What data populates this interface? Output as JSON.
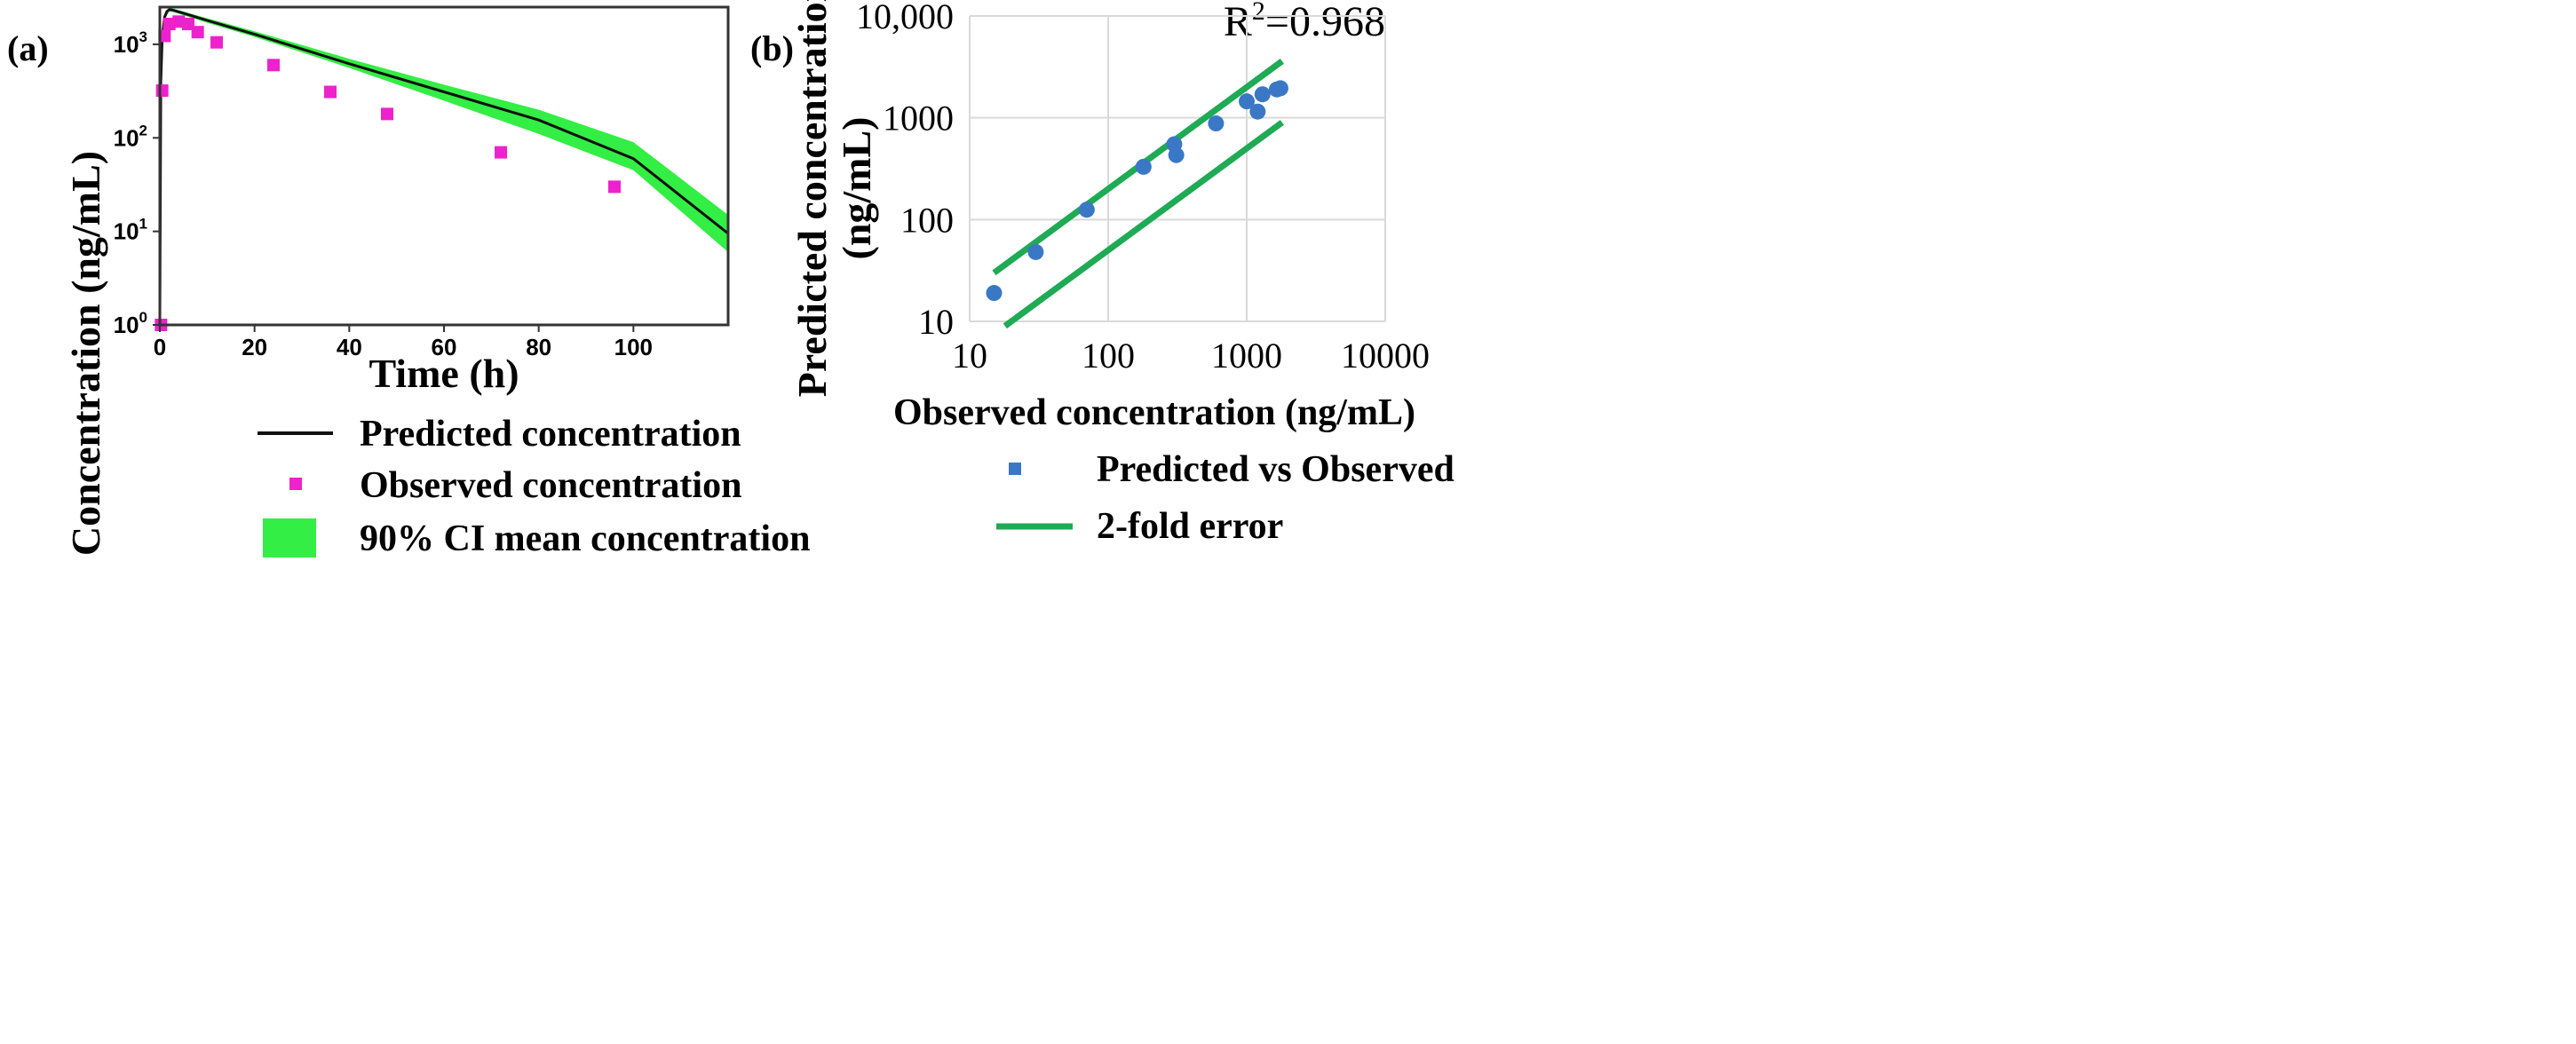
{
  "colors": {
    "predicted_line": "#111111",
    "observed_points": "#ee22cc",
    "ci_band": "#33ee44",
    "scatter_points": "#3a78c6",
    "fold_lines": "#1faa55",
    "grid": "#d9d9d9"
  },
  "chart_data": [
    {
      "panel": "(a)",
      "type": "line",
      "xlabel": "Time (h)",
      "ylabel": "Concentration (ng/mL)",
      "yscale": "log",
      "xlim": [
        0,
        120
      ],
      "ylim": [
        1,
        2500
      ],
      "x_ticks": [
        0,
        20,
        40,
        60,
        80,
        100
      ],
      "x_tick_labels": [
        "0",
        "20",
        "40",
        "60",
        "80",
        "100"
      ],
      "y_ticks": [
        1,
        10,
        100,
        1000
      ],
      "y_tick_labels": [
        {
          "base": "10",
          "exp": "0"
        },
        {
          "base": "10",
          "exp": "1"
        },
        {
          "base": "10",
          "exp": "2"
        },
        {
          "base": "10",
          "exp": "3"
        }
      ],
      "series": [
        {
          "name": "Predicted concentration",
          "kind": "line",
          "x": [
            0,
            0.2,
            0.5,
            1,
            1.5,
            2,
            3,
            5,
            10,
            20,
            40,
            60,
            80,
            100,
            120
          ],
          "values": [
            1,
            400,
            1200,
            1950,
            2250,
            2350,
            2300,
            2150,
            1800,
            1280,
            620,
            310,
            155,
            60,
            9.5
          ]
        },
        {
          "name": "Observed concentration",
          "kind": "scatter",
          "x": [
            0.25,
            0.5,
            1,
            2,
            4,
            6,
            8,
            12,
            24,
            36,
            48,
            72,
            96
          ],
          "values": [
            1,
            320,
            1230,
            1650,
            1750,
            1650,
            1350,
            1050,
            600,
            310,
            180,
            70,
            30
          ]
        },
        {
          "name": "90% CI mean concentration",
          "kind": "band",
          "x": [
            0,
            0.5,
            1,
            2,
            3,
            10,
            20,
            40,
            60,
            80,
            100,
            120
          ],
          "lower": [
            1,
            1100,
            1850,
            2250,
            2200,
            1700,
            1200,
            560,
            250,
            110,
            45,
            6
          ],
          "upper": [
            1,
            1300,
            2050,
            2450,
            2400,
            1900,
            1380,
            700,
            370,
            200,
            90,
            15
          ]
        }
      ]
    },
    {
      "panel": "(b)",
      "type": "scatter",
      "xlabel": "Observed concentration (ng/mL)",
      "ylabel_lines": [
        "Predicted concentration",
        "(ng/mL)"
      ],
      "xscale": "log",
      "yscale": "log",
      "xlim": [
        10,
        10000
      ],
      "ylim": [
        10,
        10000
      ],
      "x_ticks": [
        10,
        100,
        1000,
        10000
      ],
      "x_tick_labels": [
        "10",
        "100",
        "1000",
        "10000"
      ],
      "y_ticks": [
        10,
        100,
        1000,
        10000
      ],
      "y_tick_labels": [
        "10",
        "100",
        "1000",
        "10,000"
      ],
      "annotation": {
        "prefix": "R",
        "sup": "2",
        "suffix": "=0.968"
      },
      "series": [
        {
          "name": "Predicted vs Observed",
          "kind": "scatter",
          "x": [
            15,
            30,
            70,
            180,
            300,
            310,
            600,
            1000,
            1200,
            1300,
            1650,
            1750
          ],
          "values": [
            19,
            48,
            125,
            330,
            550,
            430,
            880,
            1450,
            1150,
            1700,
            1900,
            1950
          ]
        },
        {
          "name": "2-fold error",
          "kind": "line",
          "lines": [
            {
              "x": [
                15,
                1800
              ],
              "values": [
                30,
                3600
              ]
            },
            {
              "x": [
                18,
                1800
              ],
              "values": [
                9,
                900
              ]
            }
          ]
        }
      ]
    }
  ]
}
